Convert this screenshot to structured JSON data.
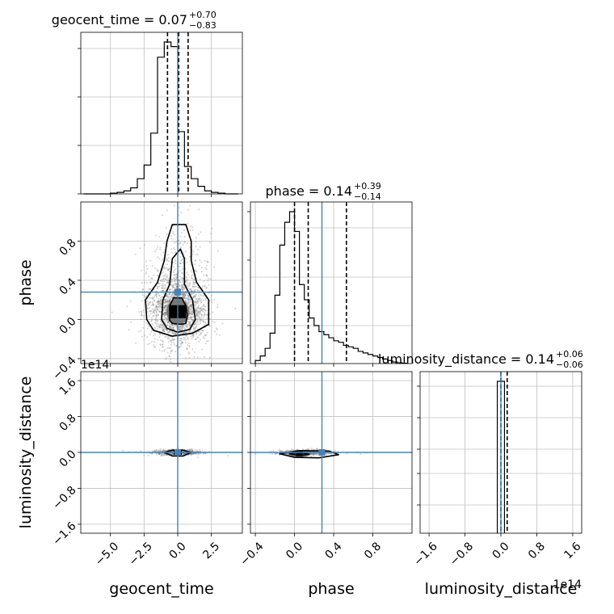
{
  "figure": {
    "colors": {
      "truth": "#4682b4",
      "hist": "#000000",
      "grid": "#c0c0c0",
      "scatter": "#7f7f7f"
    }
  },
  "chart_data": {
    "type": "corner",
    "parameters": [
      "geocent_time",
      "phase",
      "luminosity_distance"
    ],
    "truth": {
      "geocent_time": 0.0,
      "phase": 0.28,
      "luminosity_distance": 0.0
    },
    "grid": true,
    "panels": {
      "geocent_time_hist": {
        "title": {
          "base": "geocent_time = 0.07",
          "sup": "+0.70",
          "sub": "−0.83"
        },
        "xlim": [
          -7.2,
          4.8
        ],
        "bin_edges": [
          -7.0,
          -6.5,
          -6.0,
          -5.5,
          -5.0,
          -4.5,
          -4.0,
          -3.5,
          -3.0,
          -2.5,
          -2.0,
          -1.5,
          -1.0,
          -0.5,
          0.0,
          0.5,
          1.0,
          1.5,
          2.0,
          2.5,
          3.0,
          3.5,
          4.0,
          4.5
        ],
        "counts": [
          0,
          0,
          0,
          0,
          0.005,
          0.01,
          0.02,
          0.04,
          0.1,
          0.19,
          0.4,
          0.9,
          1.0,
          0.97,
          0.41,
          0.18,
          0.1,
          0.05,
          0.02,
          0.01,
          0.005,
          0,
          0
        ],
        "quantiles": [
          -0.76,
          0.07,
          0.77
        ],
        "truth": 0.0
      },
      "phase_hist": {
        "title": {
          "base": "phase = 0.14",
          "sup": "+0.39",
          "sub": "−0.14"
        },
        "xlim": [
          -0.45,
          1.2
        ],
        "bin_edges": [
          -0.4,
          -0.35,
          -0.3,
          -0.25,
          -0.2,
          -0.15,
          -0.1,
          -0.05,
          0.0,
          0.05,
          0.1,
          0.15,
          0.2,
          0.25,
          0.3,
          0.35,
          0.4,
          0.45,
          0.5,
          0.55,
          0.6,
          0.65,
          0.7,
          0.75,
          0.8,
          0.85,
          0.9,
          0.95,
          1.0,
          1.05,
          1.1,
          1.15
        ],
        "counts": [
          0.02,
          0.05,
          0.1,
          0.2,
          0.45,
          0.78,
          0.93,
          1.0,
          0.87,
          0.52,
          0.42,
          0.3,
          0.25,
          0.21,
          0.19,
          0.17,
          0.15,
          0.14,
          0.12,
          0.11,
          0.1,
          0.08,
          0.07,
          0.06,
          0.05,
          0.04,
          0.03,
          0.02,
          0.01,
          0.005,
          0.002
        ],
        "quantiles": [
          0.0,
          0.14,
          0.53
        ],
        "truth": 0.28
      },
      "luminosity_distance_hist": {
        "title": {
          "base": "luminosity_distance = 0.14",
          "sup": "+0.06",
          "sub": "−0.06"
        },
        "xlim": [
          -1.8,
          1.8
        ],
        "bin_edges": [
          -0.08,
          0.0,
          0.08
        ],
        "counts": [
          1.0,
          1.0
        ],
        "quantiles": [
          0.0,
          0.14
        ],
        "truth": 0.0
      },
      "phase_vs_geocent_time": {
        "xlim": [
          -7.2,
          4.8
        ],
        "ylim": [
          -0.45,
          1.2
        ],
        "center": [
          0.0,
          0.06
        ],
        "contours": [
          {
            "level": "inner",
            "points": [
              [
                -0.6,
                -0.01
              ],
              [
                -0.4,
                -0.04
              ],
              [
                0.2,
                -0.05
              ],
              [
                0.6,
                -0.04
              ],
              [
                0.7,
                0.04
              ],
              [
                0.6,
                0.14
              ],
              [
                0.3,
                0.22
              ],
              [
                -0.3,
                0.22
              ],
              [
                -0.6,
                0.14
              ]
            ]
          },
          {
            "level": "mid",
            "points": [
              [
                -1.2,
                0.0
              ],
              [
                -0.8,
                -0.09
              ],
              [
                0.0,
                -0.13
              ],
              [
                0.9,
                -0.1
              ],
              [
                1.3,
                0.0
              ],
              [
                1.1,
                0.2
              ],
              [
                0.5,
                0.36
              ],
              [
                0.5,
                0.62
              ],
              [
                0.2,
                0.72
              ],
              [
                -0.4,
                0.62
              ],
              [
                -0.6,
                0.36
              ],
              [
                -1.1,
                0.2
              ]
            ]
          },
          {
            "level": "outer",
            "points": [
              [
                -2.3,
                0.0
              ],
              [
                -1.8,
                -0.11
              ],
              [
                -0.4,
                -0.17
              ],
              [
                1.1,
                -0.14
              ],
              [
                2.3,
                -0.05
              ],
              [
                2.3,
                0.2
              ],
              [
                1.4,
                0.38
              ],
              [
                1.0,
                0.6
              ],
              [
                1.0,
                0.8
              ],
              [
                0.6,
                0.97
              ],
              [
                -0.4,
                0.97
              ],
              [
                -0.8,
                0.8
              ],
              [
                -1.0,
                0.6
              ],
              [
                -1.5,
                0.38
              ],
              [
                -2.4,
                0.2
              ]
            ]
          }
        ],
        "truth": [
          0.0,
          0.28
        ]
      },
      "luminosity_distance_vs_geocent_time": {
        "xlim": [
          -7.2,
          4.8
        ],
        "ylim": [
          -1.8,
          1.8
        ],
        "center": [
          0.0,
          0.0
        ],
        "contours": [
          {
            "level": "outer",
            "points": [
              [
                -1.0,
                0.0
              ],
              [
                -0.4,
                -0.08
              ],
              [
                0.4,
                -0.08
              ],
              [
                1.0,
                0.0
              ],
              [
                0.4,
                0.05
              ],
              [
                -0.4,
                0.05
              ]
            ]
          }
        ],
        "truth": [
          0.0,
          0.0
        ]
      },
      "luminosity_distance_vs_phase": {
        "xlim": [
          -0.45,
          1.2
        ],
        "ylim": [
          -1.8,
          1.8
        ],
        "center": [
          0.05,
          -0.03
        ],
        "contours": [
          {
            "level": "inner",
            "points": [
              [
                -0.05,
                -0.03
              ],
              [
                0.05,
                -0.07
              ],
              [
                0.15,
                -0.04
              ],
              [
                0.05,
                0.0
              ]
            ]
          },
          {
            "level": "outer",
            "points": [
              [
                -0.15,
                -0.03
              ],
              [
                0.0,
                -0.11
              ],
              [
                0.25,
                -0.12
              ],
              [
                0.45,
                -0.05
              ],
              [
                0.35,
                0.03
              ],
              [
                0.05,
                0.04
              ]
            ]
          }
        ],
        "truth": [
          0.28,
          0.0
        ]
      }
    },
    "axes": {
      "geocent_time": {
        "label": "geocent_time",
        "ticks": [
          -5.0,
          -2.5,
          0.0,
          2.5
        ],
        "tick_labels": [
          "−5.0",
          "−2.5",
          "0.0",
          "2.5"
        ]
      },
      "phase": {
        "label": "phase",
        "ticks": [
          -0.4,
          0.0,
          0.4,
          0.8
        ],
        "tick_labels": [
          "−0.4",
          "0.0",
          "0.4",
          "0.8"
        ]
      },
      "luminosity_distance": {
        "label": "luminosity_distance",
        "ticks": [
          -1.6,
          -0.8,
          0.0,
          0.8,
          1.6
        ],
        "tick_labels": [
          "−1.6",
          "−0.8",
          "0.0",
          "0.8",
          "1.6"
        ],
        "offset_label": "1e14"
      },
      "phase_y": {
        "ticks": [
          -0.4,
          0.0,
          0.4,
          0.8
        ],
        "tick_labels": [
          "−0.4",
          "0.0",
          "0.4",
          "0.8"
        ]
      }
    }
  }
}
